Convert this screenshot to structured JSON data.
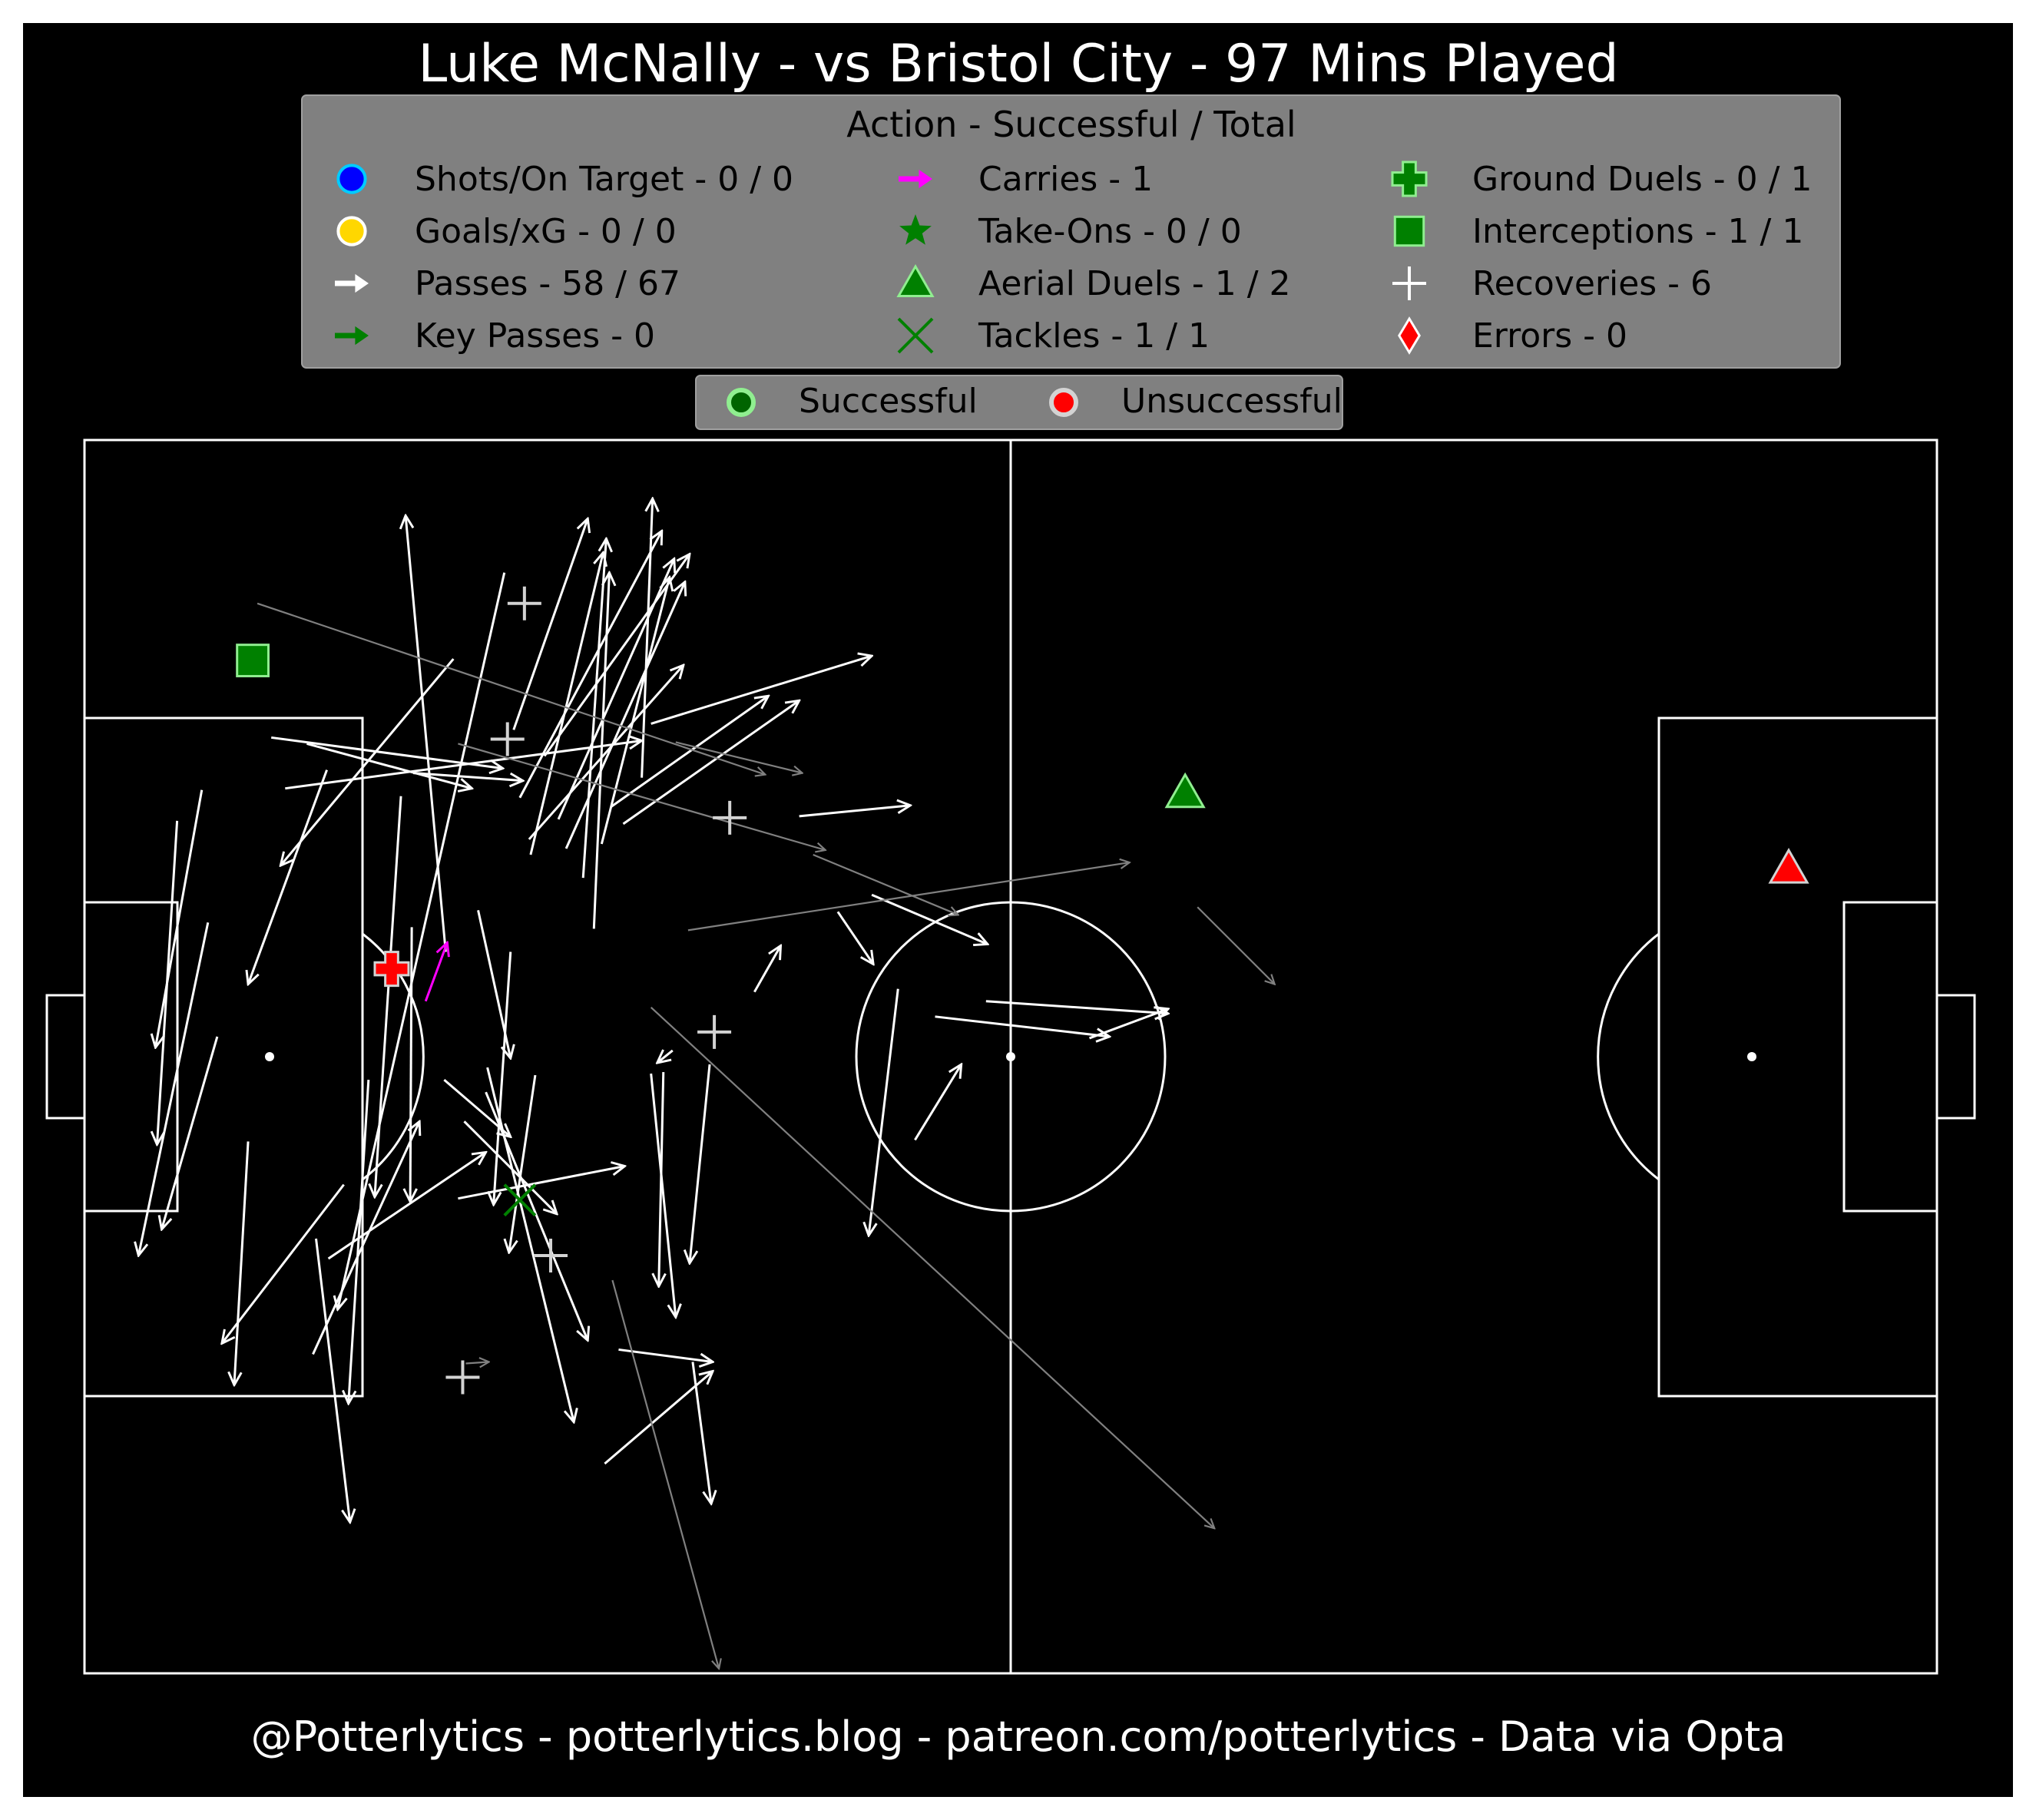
{
  "title": "Luke McNally - vs Bristol City - 97 Mins Played",
  "footer": "@Potterlytics - potterlytics.blog - patreon.com/potterlytics - Data via Opta",
  "legend": {
    "title": "Action - Successful / Total",
    "items": [
      {
        "label": "Shots/On Target - 0 / 0",
        "icon": "circle",
        "color": "#0000ff",
        "edge": "#00ccff"
      },
      {
        "label": "Goals/xG - 0 / 0",
        "icon": "circle",
        "color": "#ffd700",
        "edge": "#ffffff"
      },
      {
        "label": "Passes - 58 / 67",
        "icon": "arrow",
        "color": "#ffffff"
      },
      {
        "label": "Key Passes - 0",
        "icon": "arrow",
        "color": "#008000"
      },
      {
        "label": "Carries - 1",
        "icon": "arrow",
        "color": "#ff00ff"
      },
      {
        "label": "Take-Ons - 0 / 0",
        "icon": "star",
        "color": "#008000"
      },
      {
        "label": "Aerial Duels - 1 / 2",
        "icon": "triangle",
        "color": "#008000",
        "edge": "#90ee90"
      },
      {
        "label": "Tackles - 1 / 1",
        "icon": "x",
        "color": "#008000"
      },
      {
        "label": "Ground Duels - 0 / 1",
        "icon": "plus-thick",
        "color": "#008000",
        "edge": "#90ee90"
      },
      {
        "label": "Interceptions - 1 / 1",
        "icon": "square",
        "color": "#008000",
        "edge": "#90ee90"
      },
      {
        "label": "Recoveries - 6",
        "icon": "plus-thin",
        "color": "#ffffff"
      },
      {
        "label": "Errors - 0",
        "icon": "diamond",
        "color": "#ff0000",
        "edge": "#ffffff"
      }
    ]
  },
  "outcome_legend": {
    "successful": "Successful",
    "unsuccessful": "Unsuccessful",
    "successful_color": "#006400",
    "successful_edge": "#90ee90",
    "unsuccessful_color": "#ff0000",
    "unsuccessful_edge": "#d3d3d3"
  },
  "colors": {
    "background": "#000000",
    "pitch_lines": "#ffffff",
    "legend_box": "#808080",
    "successful_pass": "#ffffff",
    "unsuccessful_pass": "#808080",
    "carry": "#ff00ff"
  },
  "chart_data": {
    "type": "scatter",
    "pitch": {
      "length": 120,
      "width": 80,
      "direction": "left-to-right"
    },
    "passes_successful": [
      {
        "x1": 23.4,
        "y1": 46.8,
        "x2": 20.8,
        "y2": 75.1
      },
      {
        "x1": 27.2,
        "y1": 71.4,
        "x2": 16.4,
        "y2": 23.6
      },
      {
        "x1": 27.8,
        "y1": 61.2,
        "x2": 32.6,
        "y2": 74.9
      },
      {
        "x1": 28.2,
        "y1": 56.8,
        "x2": 37.4,
        "y2": 74.1
      },
      {
        "x1": 28.9,
        "y1": 53.1,
        "x2": 33.6,
        "y2": 72.7
      },
      {
        "x1": 29.8,
        "y1": 59.5,
        "x2": 39.2,
        "y2": 72.6
      },
      {
        "x1": 30.7,
        "y1": 55.4,
        "x2": 38.2,
        "y2": 72.3
      },
      {
        "x1": 31.2,
        "y1": 53.5,
        "x2": 38.9,
        "y2": 70.8
      },
      {
        "x1": 32.3,
        "y1": 51.6,
        "x2": 33.8,
        "y2": 73.6
      },
      {
        "x1": 33.0,
        "y1": 48.3,
        "x2": 34.0,
        "y2": 71.4
      },
      {
        "x1": 33.5,
        "y1": 53.8,
        "x2": 37.9,
        "y2": 71.1
      },
      {
        "x1": 36.1,
        "y1": 58.1,
        "x2": 36.8,
        "y2": 76.2
      },
      {
        "x1": 34.1,
        "y1": 56.2,
        "x2": 44.3,
        "y2": 63.4
      },
      {
        "x1": 28.8,
        "y1": 54.1,
        "x2": 38.8,
        "y2": 65.4
      },
      {
        "x1": 36.7,
        "y1": 61.6,
        "x2": 51.0,
        "y2": 66.0
      },
      {
        "x1": 34.9,
        "y1": 55.1,
        "x2": 46.3,
        "y2": 63.1
      },
      {
        "x1": 23.9,
        "y1": 65.8,
        "x2": 12.7,
        "y2": 52.4
      },
      {
        "x1": 12.1,
        "y1": 60.7,
        "x2": 27.1,
        "y2": 58.7
      },
      {
        "x1": 14.4,
        "y1": 60.3,
        "x2": 25.1,
        "y2": 57.4
      },
      {
        "x1": 13.0,
        "y1": 57.4,
        "x2": 36.1,
        "y2": 60.5
      },
      {
        "x1": 21.3,
        "y1": 58.4,
        "x2": 28.4,
        "y2": 57.9
      },
      {
        "x1": 46.3,
        "y1": 55.6,
        "x2": 53.5,
        "y2": 56.3
      },
      {
        "x1": 8.6,
        "y1": 41.3,
        "x2": 5.0,
        "y2": 28.8
      },
      {
        "x1": 7.6,
        "y1": 57.3,
        "x2": 4.6,
        "y2": 40.6
      },
      {
        "x1": 6.0,
        "y1": 55.3,
        "x2": 4.7,
        "y2": 34.3
      },
      {
        "x1": 8.0,
        "y1": 48.7,
        "x2": 3.5,
        "y2": 27.1
      },
      {
        "x1": 10.6,
        "y1": 34.5,
        "x2": 9.7,
        "y2": 18.7
      },
      {
        "x1": 15.7,
        "y1": 58.6,
        "x2": 10.6,
        "y2": 44.7
      },
      {
        "x1": 20.5,
        "y1": 56.9,
        "x2": 18.8,
        "y2": 30.9
      },
      {
        "x1": 21.2,
        "y1": 48.4,
        "x2": 21.1,
        "y2": 30.6
      },
      {
        "x1": 25.5,
        "y1": 49.5,
        "x2": 27.6,
        "y2": 39.9
      },
      {
        "x1": 27.6,
        "y1": 46.8,
        "x2": 26.5,
        "y2": 30.4
      },
      {
        "x1": 23.3,
        "y1": 38.5,
        "x2": 27.6,
        "y2": 34.8
      },
      {
        "x1": 24.6,
        "y1": 35.8,
        "x2": 30.6,
        "y2": 29.8
      },
      {
        "x1": 24.2,
        "y1": 30.8,
        "x2": 35.0,
        "y2": 32.9
      },
      {
        "x1": 15.0,
        "y1": 28.2,
        "x2": 17.2,
        "y2": 9.8
      },
      {
        "x1": 14.8,
        "y1": 20.7,
        "x2": 21.7,
        "y2": 35.8
      },
      {
        "x1": 18.4,
        "y1": 38.5,
        "x2": 17.1,
        "y2": 17.5
      },
      {
        "x1": 16.8,
        "y1": 31.7,
        "x2": 8.9,
        "y2": 21.4
      },
      {
        "x1": 15.8,
        "y1": 26.9,
        "x2": 26.0,
        "y2": 33.8
      },
      {
        "x1": 29.2,
        "y1": 38.8,
        "x2": 27.5,
        "y2": 27.3
      },
      {
        "x1": 26.1,
        "y1": 39.3,
        "x2": 31.7,
        "y2": 16.3
      },
      {
        "x1": 26.0,
        "y1": 37.7,
        "x2": 32.6,
        "y2": 21.6
      },
      {
        "x1": 51.0,
        "y1": 50.5,
        "x2": 58.5,
        "y2": 47.3
      },
      {
        "x1": 52.7,
        "y1": 44.4,
        "x2": 50.8,
        "y2": 28.4
      },
      {
        "x1": 53.8,
        "y1": 34.6,
        "x2": 56.8,
        "y2": 39.5
      },
      {
        "x1": 58.4,
        "y1": 43.6,
        "x2": 70.2,
        "y2": 42.8
      },
      {
        "x1": 55.1,
        "y1": 42.6,
        "x2": 66.4,
        "y2": 41.3
      },
      {
        "x1": 65.1,
        "y1": 41.2,
        "x2": 70.2,
        "y2": 43.1
      },
      {
        "x1": 48.8,
        "y1": 49.4,
        "x2": 51.1,
        "y2": 46.0
      },
      {
        "x1": 37.5,
        "y1": 39.0,
        "x2": 37.2,
        "y2": 25.1
      },
      {
        "x1": 40.5,
        "y1": 39.5,
        "x2": 39.2,
        "y2": 26.6
      },
      {
        "x1": 43.4,
        "y1": 44.2,
        "x2": 45.1,
        "y2": 47.2
      },
      {
        "x1": 36.7,
        "y1": 38.9,
        "x2": 38.3,
        "y2": 23.1
      },
      {
        "x1": 38.1,
        "y1": 40.4,
        "x2": 37.1,
        "y2": 39.6
      },
      {
        "x1": 39.4,
        "y1": 20.2,
        "x2": 40.6,
        "y2": 11.0
      },
      {
        "x1": 33.7,
        "y1": 13.6,
        "x2": 40.7,
        "y2": 19.6
      },
      {
        "x1": 34.6,
        "y1": 21.0,
        "x2": 40.7,
        "y2": 20.2
      }
    ],
    "passes_unsuccessful": [
      {
        "x1": 11.2,
        "y1": 69.4,
        "x2": 44.1,
        "y2": 58.3
      },
      {
        "x1": 24.2,
        "y1": 60.3,
        "x2": 48.0,
        "y2": 53.4
      },
      {
        "x1": 47.2,
        "y1": 53.1,
        "x2": 56.6,
        "y2": 49.2
      },
      {
        "x1": 39.1,
        "y1": 48.2,
        "x2": 67.7,
        "y2": 52.6
      },
      {
        "x1": 72.1,
        "y1": 49.7,
        "x2": 77.1,
        "y2": 44.7
      },
      {
        "x1": 36.7,
        "y1": 43.2,
        "x2": 73.2,
        "y2": 9.4
      },
      {
        "x1": 34.2,
        "y1": 25.5,
        "x2": 41.1,
        "y2": 0.3
      },
      {
        "x1": 38.3,
        "y1": 60.4,
        "x2": 46.5,
        "y2": 58.4
      },
      {
        "x1": 24.7,
        "y1": 20.1,
        "x2": 26.2,
        "y2": 20.2
      }
    ],
    "carries": [
      {
        "x1": 22.1,
        "y1": 43.6,
        "x2": 23.5,
        "y2": 47.4
      }
    ],
    "aerial_duels": [
      {
        "x": 71.3,
        "y": 57.1,
        "outcome": "successful"
      },
      {
        "x": 110.4,
        "y": 52.2,
        "outcome": "unsuccessful"
      }
    ],
    "tackles": [
      {
        "x": 28.2,
        "y": 30.7,
        "outcome": "successful"
      }
    ],
    "ground_duels": [
      {
        "x": 19.9,
        "y": 45.7,
        "outcome": "unsuccessful"
      }
    ],
    "interceptions": [
      {
        "x": 10.9,
        "y": 65.7,
        "outcome": "successful"
      }
    ],
    "recoveries": [
      {
        "x": 28.5,
        "y": 69.4
      },
      {
        "x": 27.4,
        "y": 60.6
      },
      {
        "x": 41.8,
        "y": 55.5
      },
      {
        "x": 40.8,
        "y": 41.6
      },
      {
        "x": 30.2,
        "y": 27.1
      },
      {
        "x": 24.5,
        "y": 19.2
      }
    ]
  }
}
